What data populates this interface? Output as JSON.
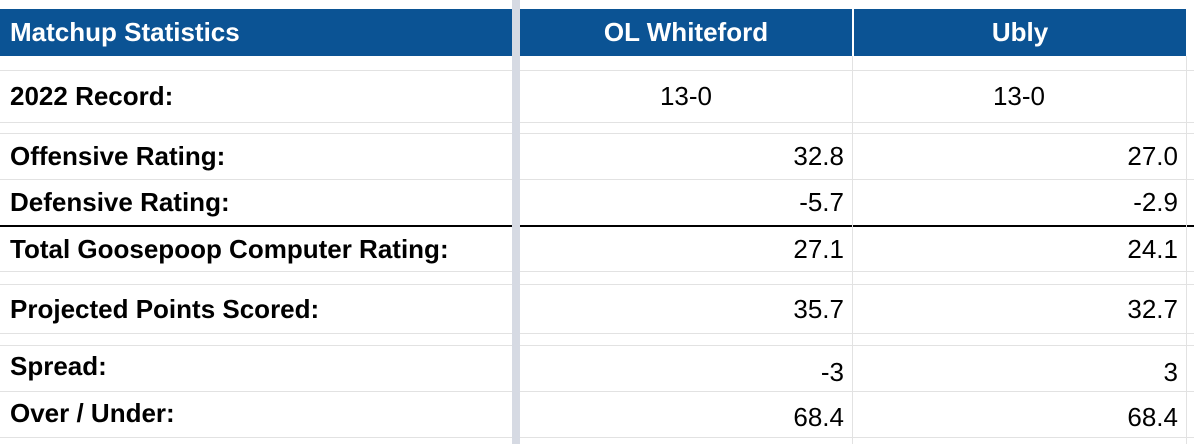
{
  "header": {
    "title": "Matchup Statistics",
    "team1": "OL Whiteford",
    "team2": "Ubly"
  },
  "rows": {
    "record": {
      "label": "2022 Record:",
      "team1": "13-0",
      "team2": "13-0"
    },
    "offensive": {
      "label": "Offensive Rating:",
      "team1": "32.8",
      "team2": "27.0"
    },
    "defensive": {
      "label": "Defensive Rating:",
      "team1": "-5.7",
      "team2": "-2.9"
    },
    "total": {
      "label": "Total Goosepoop Computer Rating:",
      "team1": "27.1",
      "team2": "24.1"
    },
    "projected": {
      "label": "Projected Points Scored:",
      "team1": "35.7",
      "team2": "32.7"
    },
    "spread": {
      "label": "Spread:",
      "team1": "-3",
      "team2": "3"
    },
    "overunder": {
      "label": "Over / Under:",
      "team1": "68.4",
      "team2": "68.4"
    }
  },
  "colors": {
    "header_bg": "#0b5394",
    "header_text": "#ffffff"
  }
}
